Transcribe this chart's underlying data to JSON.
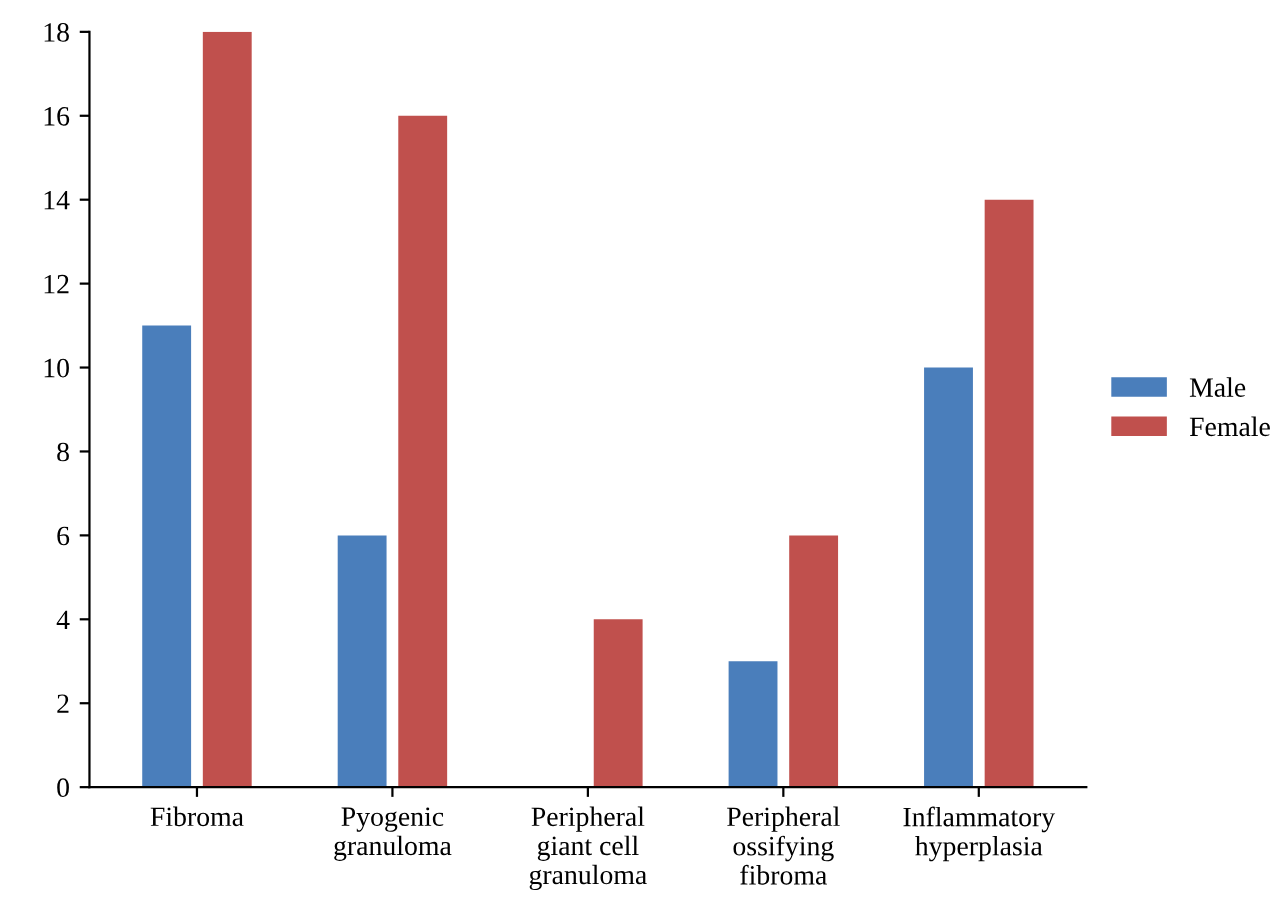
{
  "chart_data": {
    "type": "bar",
    "categories": [
      "Fibroma",
      "Pyogenic\ngranuloma",
      "Peripheral\ngiant cell\ngranuloma",
      "Peripheral\nossifying\nfibroma",
      "Inflammatory\nhyperplasia"
    ],
    "series": [
      {
        "name": "Male",
        "color": "#4a7ebb",
        "values": [
          11,
          6,
          0,
          3,
          10
        ]
      },
      {
        "name": "Female",
        "color": "#c0504d",
        "values": [
          18,
          16,
          4,
          6,
          14
        ]
      }
    ],
    "ylim": [
      0,
      18
    ],
    "yticks": [
      0,
      2,
      4,
      6,
      8,
      10,
      12,
      14,
      16,
      18
    ],
    "grid": false,
    "legend": "right"
  }
}
